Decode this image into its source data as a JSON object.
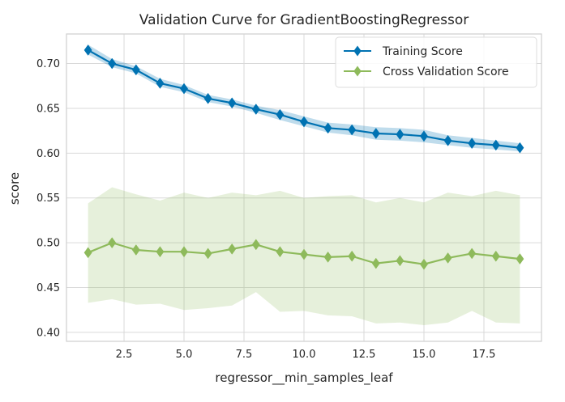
{
  "chart_data": {
    "type": "line",
    "title": "Validation Curve for GradientBoostingRegressor",
    "xlabel": "regressor__min_samples_leaf",
    "ylabel": "score",
    "xlim": [
      0.1,
      19.9
    ],
    "ylim": [
      0.39,
      0.733
    ],
    "xticks": [
      2.5,
      5.0,
      7.5,
      10.0,
      12.5,
      15.0,
      17.5
    ],
    "xtick_labels": [
      "2.5",
      "5.0",
      "7.5",
      "10.0",
      "12.5",
      "15.0",
      "17.5"
    ],
    "yticks": [
      0.4,
      0.45,
      0.5,
      0.55,
      0.6,
      0.65,
      0.7
    ],
    "ytick_labels": [
      "0.40",
      "0.45",
      "0.50",
      "0.55",
      "0.60",
      "0.65",
      "0.70"
    ],
    "grid": true,
    "legend_position": "top-right",
    "x": [
      1,
      2,
      3,
      4,
      5,
      6,
      7,
      8,
      9,
      10,
      11,
      12,
      13,
      14,
      15,
      16,
      17,
      18,
      19
    ],
    "series": [
      {
        "name": "Training Score",
        "color": "#0072B2",
        "band_color": "#0072B2",
        "marker": "diamond",
        "values": [
          0.715,
          0.7,
          0.693,
          0.678,
          0.672,
          0.661,
          0.656,
          0.649,
          0.643,
          0.635,
          0.628,
          0.626,
          0.622,
          0.621,
          0.619,
          0.614,
          0.611,
          0.609,
          0.606
        ],
        "band_low": [
          0.71,
          0.696,
          0.689,
          0.674,
          0.668,
          0.657,
          0.652,
          0.645,
          0.637,
          0.63,
          0.623,
          0.62,
          0.615,
          0.614,
          0.612,
          0.609,
          0.606,
          0.604,
          0.602
        ],
        "band_high": [
          0.721,
          0.705,
          0.697,
          0.683,
          0.676,
          0.665,
          0.66,
          0.653,
          0.648,
          0.641,
          0.634,
          0.632,
          0.629,
          0.628,
          0.626,
          0.62,
          0.617,
          0.614,
          0.611
        ]
      },
      {
        "name": "Cross Validation Score",
        "color": "#8EBA5B",
        "band_color": "#8EBA5B",
        "marker": "diamond",
        "values": [
          0.489,
          0.5,
          0.492,
          0.49,
          0.49,
          0.488,
          0.493,
          0.498,
          0.49,
          0.487,
          0.484,
          0.485,
          0.477,
          0.48,
          0.476,
          0.483,
          0.488,
          0.485,
          0.482
        ],
        "band_low": [
          0.433,
          0.437,
          0.431,
          0.432,
          0.425,
          0.427,
          0.43,
          0.445,
          0.423,
          0.424,
          0.419,
          0.418,
          0.41,
          0.411,
          0.408,
          0.411,
          0.424,
          0.411,
          0.41
        ],
        "band_high": [
          0.544,
          0.562,
          0.554,
          0.547,
          0.556,
          0.55,
          0.556,
          0.553,
          0.558,
          0.55,
          0.552,
          0.553,
          0.545,
          0.55,
          0.545,
          0.556,
          0.552,
          0.558,
          0.553
        ]
      }
    ]
  }
}
